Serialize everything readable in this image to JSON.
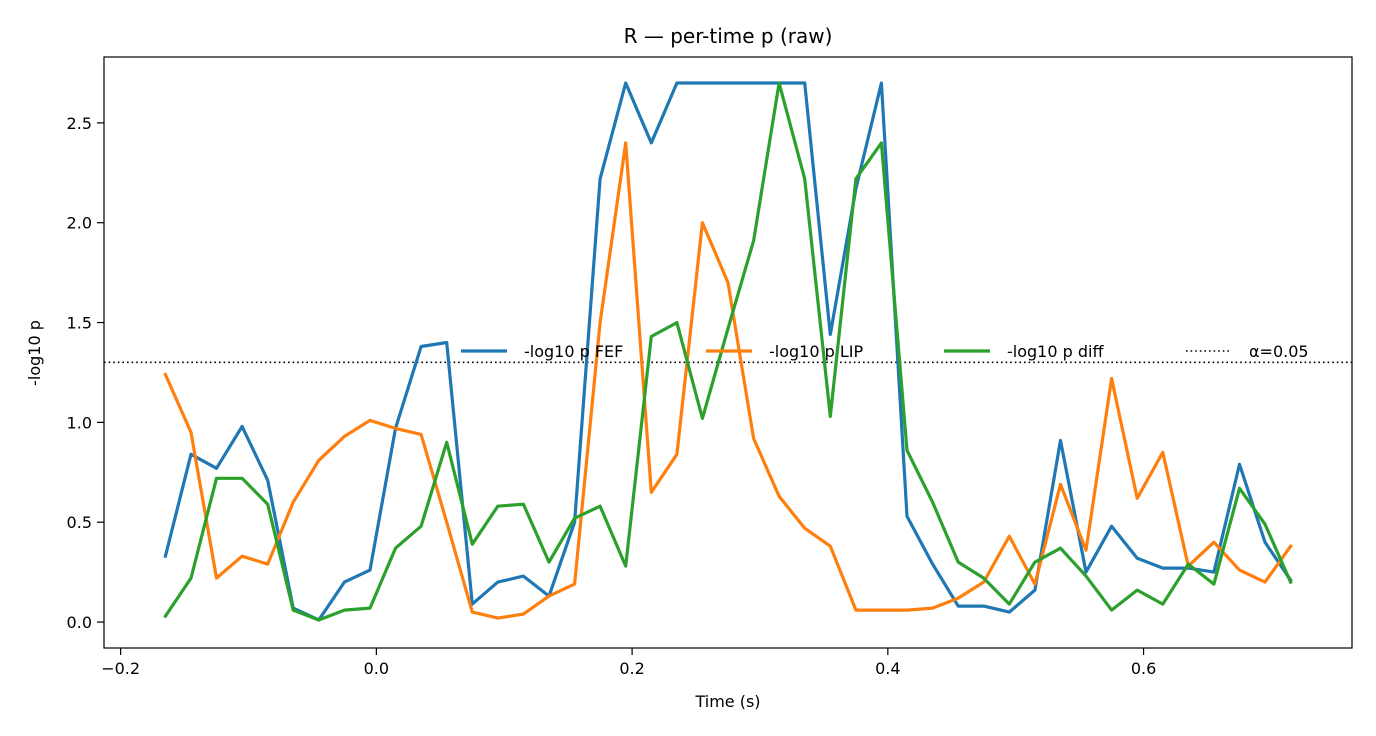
{
  "chart_data": {
    "type": "line",
    "title": "R — per-time p (raw)",
    "xlabel": "Time (s)",
    "ylabel": "-log10 p",
    "xlim": [
      -0.213,
      0.763
    ],
    "ylim": [
      -0.13,
      2.83
    ],
    "xticks": [
      -0.2,
      0.0,
      0.2,
      0.4,
      0.6
    ],
    "xtick_labels": [
      "−0.2",
      "0.0",
      "0.2",
      "0.4",
      "0.6"
    ],
    "yticks": [
      0.0,
      0.5,
      1.0,
      1.5,
      2.0,
      2.5
    ],
    "ytick_labels": [
      "0.0",
      "0.5",
      "1.0",
      "1.5",
      "2.0",
      "2.5"
    ],
    "grid": false,
    "legend_position": "center-right",
    "x": [
      -0.165,
      -0.145,
      -0.125,
      -0.105,
      -0.085,
      -0.065,
      -0.045,
      -0.025,
      -0.005,
      0.015,
      0.035,
      0.055,
      0.075,
      0.095,
      0.115,
      0.135,
      0.155,
      0.175,
      0.195,
      0.215,
      0.235,
      0.255,
      0.275,
      0.295,
      0.315,
      0.335,
      0.355,
      0.375,
      0.395,
      0.415,
      0.435,
      0.455,
      0.475,
      0.495,
      0.515,
      0.535,
      0.555,
      0.575,
      0.595,
      0.615,
      0.635,
      0.655,
      0.675,
      0.695,
      0.715
    ],
    "series": [
      {
        "name": "-log10 p FEF",
        "color": "#1f77b4",
        "values": [
          0.33,
          0.84,
          0.77,
          0.98,
          0.71,
          0.07,
          0.01,
          0.2,
          0.26,
          0.97,
          1.38,
          1.4,
          0.09,
          0.2,
          0.23,
          0.13,
          0.5,
          2.22,
          2.7,
          2.4,
          2.7,
          2.7,
          2.7,
          2.7,
          2.7,
          2.7,
          1.44,
          2.17,
          2.7,
          0.53,
          0.29,
          0.08,
          0.08,
          0.05,
          0.16,
          0.91,
          0.25,
          0.48,
          0.32,
          0.27,
          0.27,
          0.25,
          0.79,
          0.4,
          0.21
        ]
      },
      {
        "name": "-log10 p LIP",
        "color": "#ff7f0e",
        "values": [
          1.24,
          0.95,
          0.22,
          0.33,
          0.29,
          0.6,
          0.81,
          0.93,
          1.01,
          0.97,
          0.94,
          0.5,
          0.05,
          0.02,
          0.04,
          0.13,
          0.19,
          1.5,
          2.4,
          0.65,
          0.84,
          2.0,
          1.7,
          0.92,
          0.63,
          0.47,
          0.38,
          0.06,
          0.06,
          0.06,
          0.07,
          0.12,
          0.2,
          0.43,
          0.19,
          0.69,
          0.36,
          1.22,
          0.62,
          0.85,
          0.28,
          0.4,
          0.26,
          0.2,
          0.38
        ]
      },
      {
        "name": "-log10 p diff",
        "color": "#2ca02c",
        "values": [
          0.03,
          0.22,
          0.72,
          0.72,
          0.59,
          0.06,
          0.01,
          0.06,
          0.07,
          0.37,
          0.48,
          0.9,
          0.39,
          0.58,
          0.59,
          0.3,
          0.52,
          0.58,
          0.28,
          1.43,
          1.5,
          1.02,
          1.47,
          1.91,
          2.7,
          2.22,
          1.03,
          2.22,
          2.4,
          0.86,
          0.6,
          0.3,
          0.22,
          0.09,
          0.3,
          0.37,
          0.23,
          0.06,
          0.16,
          0.09,
          0.29,
          0.19,
          0.67,
          0.49,
          0.2
        ]
      }
    ],
    "reference_line": {
      "name": "α=0.05",
      "y": 1.301,
      "style": "dotted",
      "color": "#000000"
    }
  }
}
